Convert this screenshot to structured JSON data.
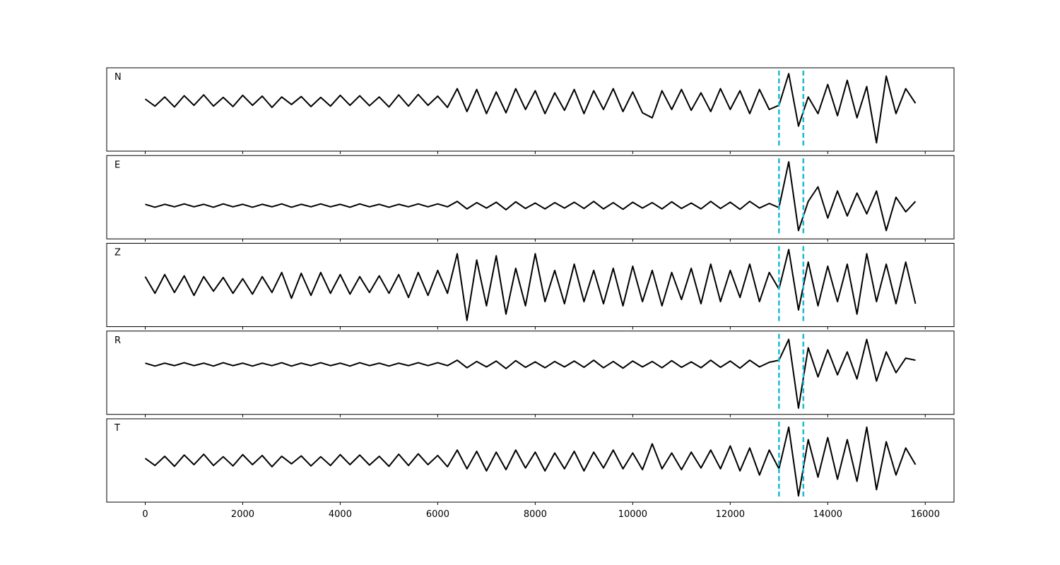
{
  "chart_data": {
    "type": "line",
    "x": [
      0,
      200,
      400,
      600,
      800,
      1000,
      1200,
      1400,
      1600,
      1800,
      2000,
      2200,
      2400,
      2600,
      2800,
      3000,
      3200,
      3400,
      3600,
      3800,
      4000,
      4200,
      4400,
      4600,
      4800,
      5000,
      5200,
      5400,
      5600,
      5800,
      6000,
      6200,
      6400,
      6600,
      6800,
      7000,
      7200,
      7400,
      7600,
      7800,
      8000,
      8200,
      8400,
      8600,
      8800,
      9000,
      9200,
      9400,
      9600,
      9800,
      10000,
      10200,
      10400,
      10600,
      10800,
      11000,
      11200,
      11400,
      11600,
      11800,
      12000,
      12200,
      12400,
      12600,
      12800,
      13000,
      13200,
      13400,
      13600,
      13800,
      14000,
      14200,
      14400,
      14600,
      14800,
      15000,
      15200,
      15400,
      15600,
      15800
    ],
    "xlim": [
      -790,
      16590
    ],
    "xticks": [
      0,
      2000,
      4000,
      6000,
      8000,
      10000,
      12000,
      14000,
      16000
    ],
    "vlines": [
      13000,
      13500
    ],
    "vline_color": "#17becf",
    "series": [
      {
        "name": "N",
        "color": "#000000",
        "ylim": [
          -1.2,
          0.8
        ],
        "values": [
          0.05,
          -0.12,
          0.1,
          -0.14,
          0.13,
          -0.1,
          0.15,
          -0.12,
          0.09,
          -0.13,
          0.14,
          -0.1,
          0.12,
          -0.15,
          0.1,
          -0.08,
          0.11,
          -0.13,
          0.09,
          -0.12,
          0.14,
          -0.1,
          0.13,
          -0.11,
          0.1,
          -0.14,
          0.15,
          -0.12,
          0.16,
          -0.1,
          0.12,
          -0.15,
          0.3,
          -0.25,
          0.28,
          -0.3,
          0.22,
          -0.28,
          0.3,
          -0.2,
          0.25,
          -0.3,
          0.2,
          -0.22,
          0.28,
          -0.3,
          0.25,
          -0.2,
          0.3,
          -0.25,
          0.22,
          -0.28,
          -0.4,
          0.25,
          -0.2,
          0.28,
          -0.22,
          0.2,
          -0.25,
          0.3,
          -0.2,
          0.25,
          -0.3,
          0.28,
          -0.2,
          -0.1,
          0.66,
          -0.6,
          0.1,
          -0.3,
          0.4,
          -0.35,
          0.5,
          -0.4,
          0.35,
          -1.0,
          0.6,
          -0.3,
          0.3,
          -0.05
        ]
      },
      {
        "name": "E",
        "color": "#000000",
        "ylim": [
          -0.8,
          1.2
        ],
        "values": [
          0.03,
          -0.04,
          0.03,
          -0.03,
          0.04,
          -0.03,
          0.03,
          -0.04,
          0.04,
          -0.03,
          0.03,
          -0.04,
          0.03,
          -0.03,
          0.04,
          -0.04,
          0.03,
          -0.03,
          0.04,
          -0.03,
          0.03,
          -0.04,
          0.04,
          -0.03,
          0.03,
          -0.04,
          0.03,
          -0.03,
          0.04,
          -0.03,
          0.04,
          -0.03,
          0.1,
          -0.08,
          0.07,
          -0.06,
          0.08,
          -0.1,
          0.09,
          -0.07,
          0.06,
          -0.08,
          0.07,
          -0.06,
          0.08,
          -0.07,
          0.1,
          -0.08,
          0.07,
          -0.09,
          0.08,
          -0.06,
          0.07,
          -0.08,
          0.09,
          -0.07,
          0.06,
          -0.08,
          0.1,
          -0.07,
          0.08,
          -0.09,
          0.1,
          -0.06,
          0.05,
          -0.05,
          1.05,
          -0.6,
          0.1,
          0.45,
          -0.3,
          0.35,
          -0.25,
          0.3,
          -0.2,
          0.35,
          -0.6,
          0.2,
          -0.15,
          0.1
        ]
      },
      {
        "name": "Z",
        "color": "#000000",
        "ylim": [
          -1,
          1
        ],
        "values": [
          0.2,
          -0.2,
          0.25,
          -0.18,
          0.22,
          -0.25,
          0.2,
          -0.15,
          0.18,
          -0.2,
          0.15,
          -0.22,
          0.2,
          -0.18,
          0.3,
          -0.32,
          0.28,
          -0.25,
          0.3,
          -0.2,
          0.25,
          -0.22,
          0.2,
          -0.18,
          0.22,
          -0.2,
          0.25,
          -0.3,
          0.3,
          -0.25,
          0.35,
          -0.2,
          0.75,
          -0.85,
          0.6,
          -0.5,
          0.7,
          -0.7,
          0.4,
          -0.5,
          0.75,
          -0.4,
          0.35,
          -0.45,
          0.5,
          -0.4,
          0.35,
          -0.45,
          0.4,
          -0.5,
          0.45,
          -0.4,
          0.35,
          -0.5,
          0.3,
          -0.35,
          0.4,
          -0.45,
          0.5,
          -0.4,
          0.35,
          -0.3,
          0.5,
          -0.4,
          0.3,
          -0.1,
          0.85,
          -0.6,
          0.55,
          -0.5,
          0.45,
          -0.4,
          0.5,
          -0.7,
          0.75,
          -0.4,
          0.5,
          -0.45,
          0.55,
          -0.45
        ]
      },
      {
        "name": "R",
        "color": "#000000",
        "ylim": [
          -1.2,
          0.8
        ],
        "values": [
          0.03,
          -0.04,
          0.03,
          -0.03,
          0.04,
          -0.03,
          0.03,
          -0.04,
          0.04,
          -0.03,
          0.03,
          -0.04,
          0.03,
          -0.03,
          0.04,
          -0.04,
          0.03,
          -0.03,
          0.04,
          -0.03,
          0.03,
          -0.04,
          0.04,
          -0.03,
          0.03,
          -0.04,
          0.03,
          -0.03,
          0.04,
          -0.03,
          0.04,
          -0.03,
          0.1,
          -0.08,
          0.07,
          -0.06,
          0.08,
          -0.1,
          0.09,
          -0.07,
          0.06,
          -0.08,
          0.07,
          -0.06,
          0.08,
          -0.07,
          0.1,
          -0.08,
          0.07,
          -0.09,
          0.08,
          -0.06,
          0.07,
          -0.08,
          0.09,
          -0.07,
          0.06,
          -0.08,
          0.1,
          -0.07,
          0.08,
          -0.09,
          0.1,
          -0.06,
          0.05,
          0.1,
          0.6,
          -1.05,
          0.4,
          -0.3,
          0.35,
          -0.25,
          0.3,
          -0.35,
          0.6,
          -0.4,
          0.3,
          -0.2,
          0.15,
          0.1
        ]
      },
      {
        "name": "T",
        "color": "#000000",
        "ylim": [
          -1,
          1
        ],
        "values": [
          0.05,
          -0.12,
          0.1,
          -0.14,
          0.13,
          -0.1,
          0.15,
          -0.12,
          0.09,
          -0.13,
          0.14,
          -0.1,
          0.12,
          -0.15,
          0.1,
          -0.08,
          0.11,
          -0.13,
          0.09,
          -0.12,
          0.14,
          -0.1,
          0.13,
          -0.11,
          0.1,
          -0.14,
          0.15,
          -0.12,
          0.16,
          -0.1,
          0.12,
          -0.15,
          0.25,
          -0.2,
          0.22,
          -0.25,
          0.2,
          -0.22,
          0.25,
          -0.18,
          0.2,
          -0.25,
          0.18,
          -0.2,
          0.22,
          -0.25,
          0.2,
          -0.18,
          0.25,
          -0.2,
          0.18,
          -0.22,
          0.4,
          -0.2,
          0.18,
          -0.22,
          0.2,
          -0.18,
          0.25,
          -0.2,
          0.35,
          -0.25,
          0.3,
          -0.35,
          0.25,
          -0.2,
          0.8,
          -0.85,
          0.5,
          -0.4,
          0.55,
          -0.45,
          0.5,
          -0.5,
          0.8,
          -0.7,
          0.45,
          -0.35,
          0.3,
          -0.1
        ]
      }
    ]
  }
}
